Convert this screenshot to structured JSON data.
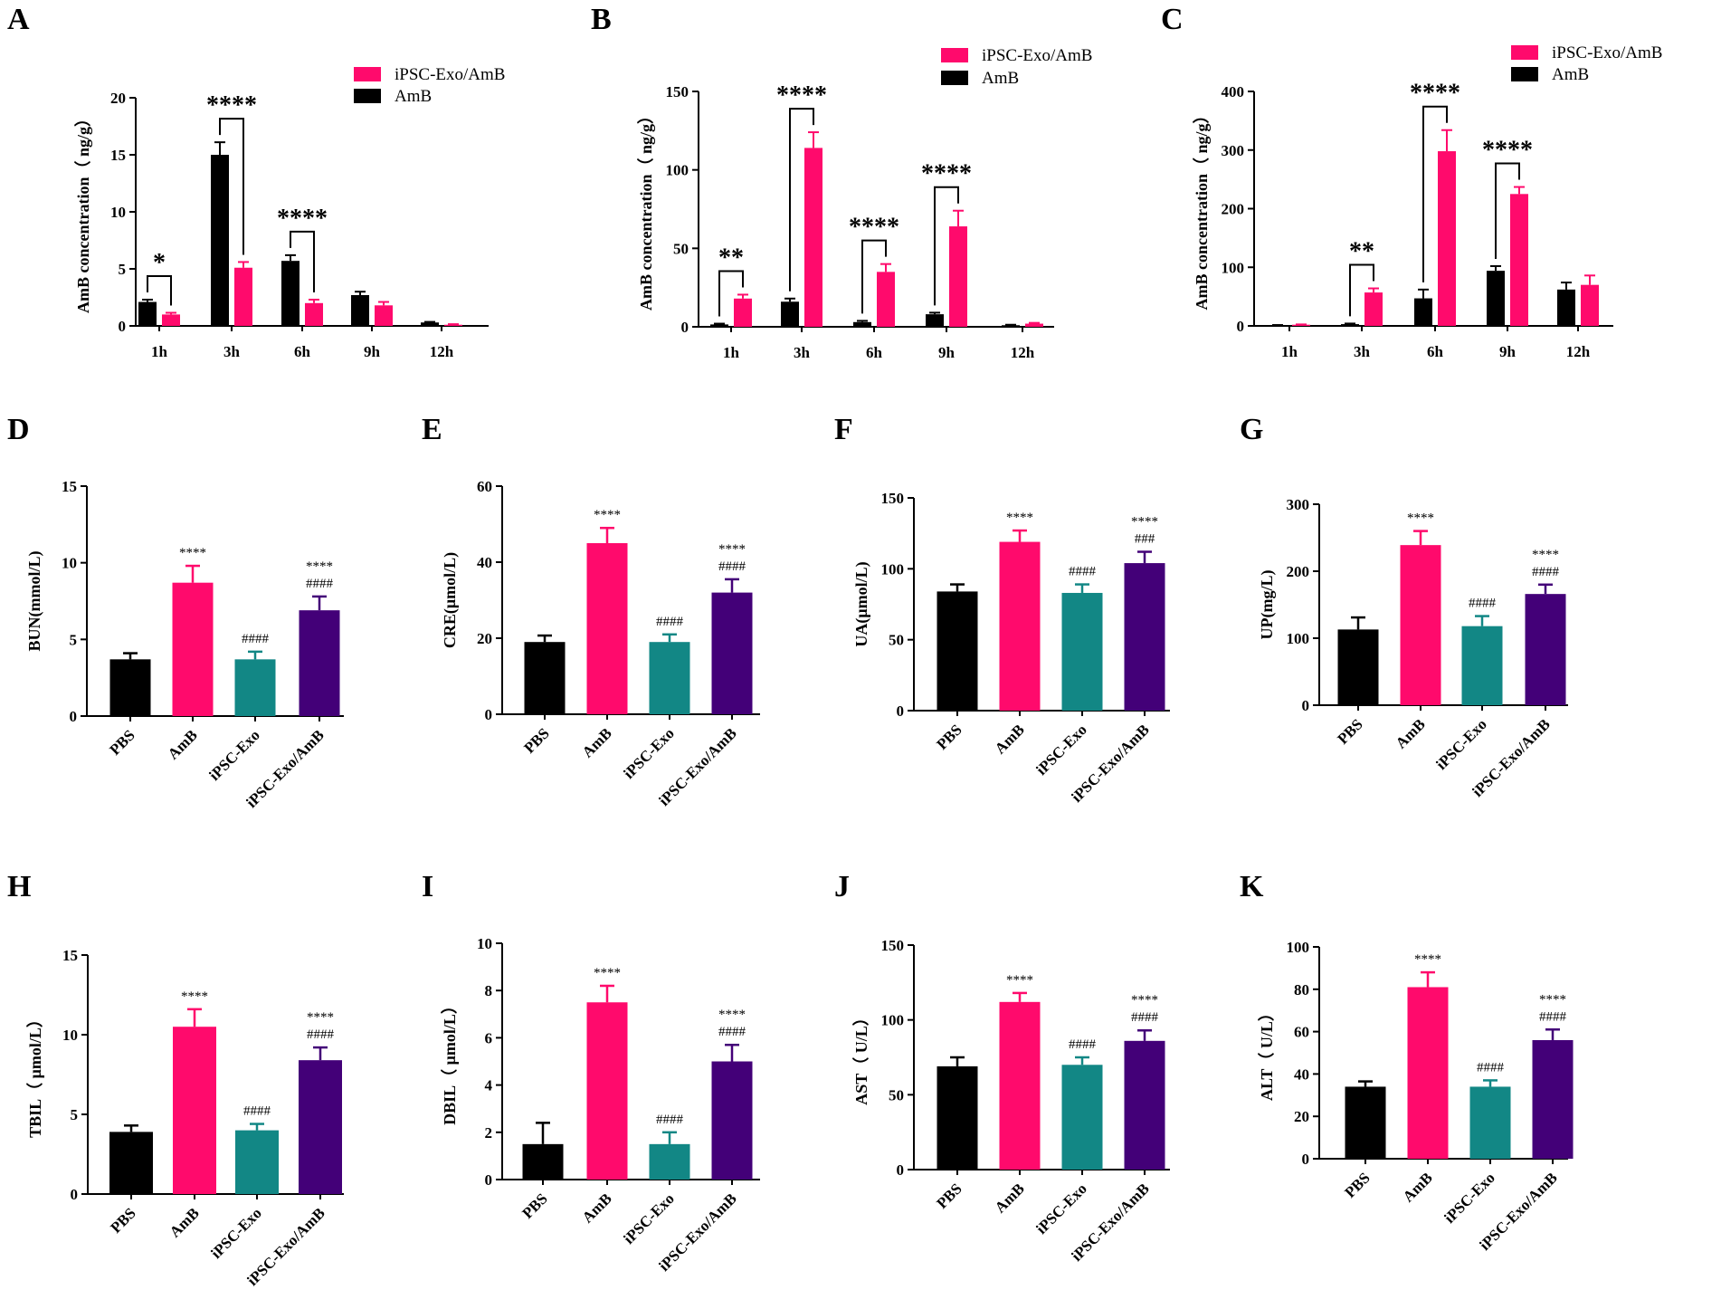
{
  "colors": {
    "AmB": "#ff0a6c",
    "PBS": "#000000",
    "iPSC-Exo": "#128785",
    "iPSC-Exo/AmB": "#430078"
  },
  "chart_data": [
    {
      "panel": "A",
      "type": "bar",
      "ylabel": "AmB concentration（ ng/g）",
      "ylim": [
        0,
        20
      ],
      "yticks": [
        0,
        5,
        10,
        15,
        20
      ],
      "categories": [
        "1h",
        "3h",
        "6h",
        "9h",
        "12h"
      ],
      "legend": [
        "iPSC-Exo/AmB",
        "AmB"
      ],
      "series": [
        {
          "name": "AmB",
          "color": "#000000",
          "values": [
            2.1,
            15.0,
            5.7,
            2.7,
            0.3
          ],
          "errors": [
            0.2,
            1.1,
            0.5,
            0.3,
            0.05
          ]
        },
        {
          "name": "iPSC-Exo/AmB",
          "color": "#ff0a6c",
          "values": [
            1.0,
            5.1,
            2.0,
            1.8,
            0.1
          ],
          "errors": [
            0.15,
            0.5,
            0.3,
            0.3,
            0.05
          ]
        }
      ],
      "significance": [
        {
          "category": 0,
          "label": "*"
        },
        {
          "category": 1,
          "label": "****"
        },
        {
          "category": 2,
          "label": "****"
        }
      ]
    },
    {
      "panel": "B",
      "type": "bar",
      "ylabel": "AmB concentration（ ng/g）",
      "ylim": [
        0,
        150
      ],
      "yticks": [
        0,
        50,
        100,
        150
      ],
      "categories": [
        "1h",
        "3h",
        "6h",
        "9h",
        "12h"
      ],
      "legend": [
        "iPSC-Exo/AmB",
        "AmB"
      ],
      "series": [
        {
          "name": "AmB",
          "color": "#000000",
          "values": [
            1.5,
            16,
            3,
            8,
            1
          ],
          "errors": [
            0.5,
            2,
            0.8,
            1,
            0.3
          ]
        },
        {
          "name": "iPSC-Exo/AmB",
          "color": "#ff0a6c",
          "values": [
            18,
            114,
            35,
            64,
            2
          ],
          "errors": [
            2.5,
            10,
            5,
            10,
            0.5
          ]
        }
      ],
      "significance": [
        {
          "category": 0,
          "label": "**"
        },
        {
          "category": 1,
          "label": "****"
        },
        {
          "category": 2,
          "label": "****"
        },
        {
          "category": 3,
          "label": "****"
        }
      ]
    },
    {
      "panel": "C",
      "type": "bar",
      "ylabel": "AmB concentration（ ng/g）",
      "ylim": [
        0,
        400
      ],
      "yticks": [
        0,
        100,
        200,
        300,
        400
      ],
      "categories": [
        "1h",
        "3h",
        "6h",
        "9h",
        "12h"
      ],
      "legend": [
        "iPSC-Exo/AmB",
        "AmB"
      ],
      "series": [
        {
          "name": "AmB",
          "color": "#000000",
          "values": [
            1,
            3,
            47,
            94,
            62
          ],
          "errors": [
            0.5,
            1,
            15,
            8,
            12
          ]
        },
        {
          "name": "iPSC-Exo/AmB",
          "color": "#ff0a6c",
          "values": [
            2,
            57,
            298,
            225,
            70
          ],
          "errors": [
            0.5,
            7,
            36,
            12,
            16
          ]
        }
      ],
      "significance": [
        {
          "category": 1,
          "label": "**"
        },
        {
          "category": 2,
          "label": "****"
        },
        {
          "category": 3,
          "label": "****"
        }
      ]
    },
    {
      "panel": "D",
      "type": "bar",
      "ylabel": "BUN(mmol/L)",
      "ylim": [
        0,
        15
      ],
      "yticks": [
        0,
        5,
        10,
        15
      ],
      "categories": [
        "PBS",
        "AmB",
        "iPSC-Exo",
        "iPSC-Exo/AmB"
      ],
      "values": [
        3.7,
        8.7,
        3.7,
        6.9
      ],
      "errors": [
        0.4,
        1.1,
        0.5,
        0.9
      ],
      "annotations": [
        [],
        [
          "****"
        ],
        [
          "####"
        ],
        [
          "****",
          "####"
        ]
      ]
    },
    {
      "panel": "E",
      "type": "bar",
      "ylabel": "CRE(μmol/L)",
      "ylim": [
        0,
        60
      ],
      "yticks": [
        0,
        20,
        40,
        60
      ],
      "categories": [
        "PBS",
        "AmB",
        "iPSC-Exo",
        "iPSC-Exo/AmB"
      ],
      "values": [
        19,
        45,
        19,
        32
      ],
      "errors": [
        1.7,
        4,
        2,
        3.5
      ],
      "annotations": [
        [],
        [
          "****"
        ],
        [
          "####"
        ],
        [
          "****",
          "####"
        ]
      ]
    },
    {
      "panel": "F",
      "type": "bar",
      "ylabel": "UA(μmol/L)",
      "ylim": [
        0,
        150
      ],
      "yticks": [
        0,
        50,
        100,
        150
      ],
      "categories": [
        "PBS",
        "AmB",
        "iPSC-Exo",
        "iPSC-Exo/AmB"
      ],
      "values": [
        84,
        119,
        83,
        104
      ],
      "errors": [
        5,
        8,
        6,
        8
      ],
      "annotations": [
        [],
        [
          "****"
        ],
        [
          "####"
        ],
        [
          "****",
          "###"
        ]
      ]
    },
    {
      "panel": "G",
      "type": "bar",
      "ylabel": "UP(mg/L)",
      "ylim": [
        0,
        300
      ],
      "yticks": [
        0,
        100,
        200,
        300
      ],
      "categories": [
        "PBS",
        "AmB",
        "iPSC-Exo",
        "iPSC-Exo/AmB"
      ],
      "values": [
        113,
        239,
        118,
        166
      ],
      "errors": [
        18,
        21,
        15,
        14
      ],
      "annotations": [
        [],
        [
          "****"
        ],
        [
          "####"
        ],
        [
          "****",
          "####"
        ]
      ]
    },
    {
      "panel": "H",
      "type": "bar",
      "ylabel": "TBIL（ μmol/L）",
      "ylim": [
        0,
        15
      ],
      "yticks": [
        0,
        5,
        10,
        15
      ],
      "categories": [
        "PBS",
        "AmB",
        "iPSC-Exo",
        "iPSC-Exo/AmB"
      ],
      "values": [
        3.9,
        10.5,
        4.0,
        8.4
      ],
      "errors": [
        0.4,
        1.1,
        0.4,
        0.8
      ],
      "annotations": [
        [],
        [
          "****"
        ],
        [
          "####"
        ],
        [
          "****",
          "####"
        ]
      ]
    },
    {
      "panel": "I",
      "type": "bar",
      "ylabel": "DBIL（ μmol/L）",
      "ylim": [
        0,
        10
      ],
      "yticks": [
        0,
        2,
        4,
        6,
        8,
        10
      ],
      "categories": [
        "PBS",
        "AmB",
        "iPSC-Exo",
        "iPSC-Exo/AmB"
      ],
      "values": [
        1.5,
        7.5,
        1.5,
        5.0
      ],
      "errors": [
        0.9,
        0.7,
        0.5,
        0.7
      ],
      "annotations": [
        [],
        [
          "****"
        ],
        [
          "####"
        ],
        [
          "****",
          "####"
        ]
      ]
    },
    {
      "panel": "J",
      "type": "bar",
      "ylabel": "AST（ U/L）",
      "ylim": [
        0,
        150
      ],
      "yticks": [
        0,
        50,
        100,
        150
      ],
      "categories": [
        "PBS",
        "AmB",
        "iPSC-Exo",
        "iPSC-Exo/AmB"
      ],
      "values": [
        69,
        112,
        70,
        86
      ],
      "errors": [
        6,
        6,
        5,
        7
      ],
      "annotations": [
        [],
        [
          "****"
        ],
        [
          "####"
        ],
        [
          "****",
          "####"
        ]
      ]
    },
    {
      "panel": "K",
      "type": "bar",
      "ylabel": "ALT（ U/L）",
      "ylim": [
        0,
        100
      ],
      "yticks": [
        0,
        20,
        40,
        60,
        80,
        100
      ],
      "categories": [
        "PBS",
        "AmB",
        "iPSC-Exo",
        "iPSC-Exo/AmB"
      ],
      "values": [
        34,
        81,
        34,
        56
      ],
      "errors": [
        2.5,
        7,
        3,
        5
      ],
      "annotations": [
        [],
        [
          "****"
        ],
        [
          "####"
        ],
        [
          "****",
          "####"
        ]
      ]
    }
  ]
}
